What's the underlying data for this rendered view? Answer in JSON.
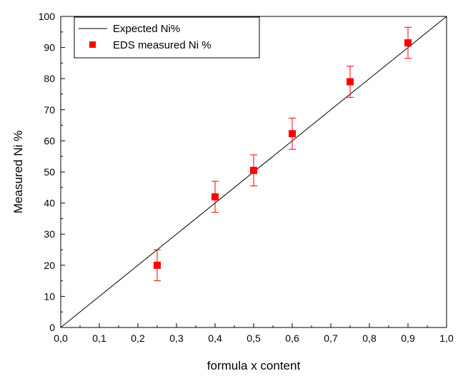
{
  "chart_data": {
    "type": "scatter",
    "xlabel": "formula x content",
    "ylabel": "Measured Ni %",
    "xlim": [
      0.0,
      1.0
    ],
    "ylim": [
      0,
      100
    ],
    "x_ticks": [
      0.0,
      0.1,
      0.2,
      0.3,
      0.4,
      0.5,
      0.6,
      0.7,
      0.8,
      0.9,
      1.0
    ],
    "x_tick_labels": [
      "0,0",
      "0,1",
      "0,2",
      "0,3",
      "0,4",
      "0,5",
      "0,6",
      "0,7",
      "0,8",
      "0,9",
      "1,0"
    ],
    "y_ticks": [
      0,
      10,
      20,
      30,
      40,
      50,
      60,
      70,
      80,
      90,
      100
    ],
    "y_tick_labels": [
      "0",
      "10",
      "20",
      "30",
      "40",
      "50",
      "60",
      "70",
      "80",
      "90",
      "100"
    ],
    "grid": false,
    "legend_position": "top-left",
    "series": [
      {
        "name": "Expected Ni%",
        "kind": "line",
        "color": "#000000",
        "x": [
          0.0,
          1.0
        ],
        "y": [
          0,
          100
        ]
      },
      {
        "name": "EDS measured Ni %",
        "kind": "scatter",
        "marker": "square",
        "color": "#ff0000",
        "x": [
          0.25,
          0.4,
          0.5,
          0.6,
          0.75,
          0.9
        ],
        "y": [
          20.0,
          42.0,
          50.5,
          62.3,
          79.0,
          91.5
        ],
        "error": [
          5.0,
          5.0,
          5.0,
          5.0,
          5.0,
          5.0
        ]
      }
    ]
  }
}
